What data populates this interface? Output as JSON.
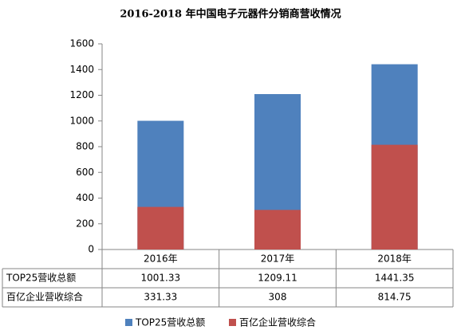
{
  "chart_data": {
    "type": "bar",
    "title": "2016-2018 年中国电子元器件分销商营收情况",
    "categories": [
      "2016年",
      "2017年",
      "2018年"
    ],
    "series": [
      {
        "name": "TOP25营收总额",
        "color": "#4f81bd",
        "values": [
          1001.33,
          1209.11,
          1441.35
        ]
      },
      {
        "name": "百亿企业营收综合",
        "color": "#c0504d",
        "values": [
          331.33,
          308,
          814.75
        ]
      }
    ],
    "ylim": [
      0,
      1600
    ],
    "yticks": [
      0,
      200,
      400,
      600,
      800,
      1000,
      1200,
      1400,
      1600
    ],
    "grid": false,
    "legend": "bottom"
  }
}
